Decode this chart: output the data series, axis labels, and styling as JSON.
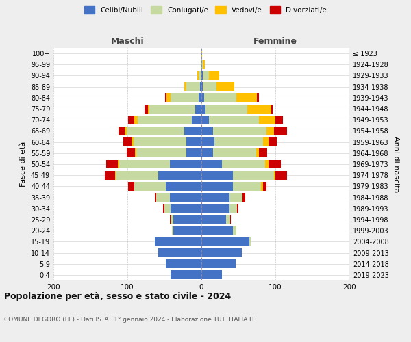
{
  "age_groups": [
    "0-4",
    "5-9",
    "10-14",
    "15-19",
    "20-24",
    "25-29",
    "30-34",
    "35-39",
    "40-44",
    "45-49",
    "50-54",
    "55-59",
    "60-64",
    "65-69",
    "70-74",
    "75-79",
    "80-84",
    "85-89",
    "90-94",
    "95-99",
    "100+"
  ],
  "birth_years": [
    "2019-2023",
    "2014-2018",
    "2009-2013",
    "2004-2008",
    "1999-2003",
    "1994-1998",
    "1989-1993",
    "1984-1988",
    "1979-1983",
    "1974-1978",
    "1969-1973",
    "1964-1968",
    "1959-1963",
    "1954-1958",
    "1949-1953",
    "1944-1948",
    "1939-1943",
    "1934-1938",
    "1929-1933",
    "1924-1928",
    "≤ 1923"
  ],
  "maschi": {
    "celibi": [
      42,
      48,
      58,
      63,
      38,
      38,
      42,
      43,
      48,
      58,
      43,
      20,
      20,
      23,
      13,
      8,
      4,
      2,
      0,
      0,
      0
    ],
    "coniugati": [
      0,
      0,
      0,
      0,
      2,
      4,
      8,
      18,
      43,
      58,
      68,
      68,
      72,
      78,
      73,
      62,
      38,
      18,
      4,
      1,
      0
    ],
    "vedovi": [
      0,
      0,
      0,
      0,
      0,
      0,
      0,
      0,
      0,
      1,
      2,
      2,
      2,
      3,
      5,
      2,
      5,
      3,
      2,
      0,
      0
    ],
    "divorziati": [
      0,
      0,
      0,
      0,
      0,
      1,
      2,
      2,
      8,
      14,
      16,
      11,
      12,
      8,
      8,
      5,
      2,
      0,
      0,
      0,
      0
    ]
  },
  "femmine": {
    "nubili": [
      28,
      46,
      55,
      65,
      43,
      33,
      38,
      38,
      43,
      43,
      28,
      16,
      18,
      16,
      10,
      6,
      4,
      2,
      2,
      0,
      0
    ],
    "coniugate": [
      0,
      0,
      0,
      2,
      4,
      6,
      10,
      18,
      38,
      55,
      58,
      58,
      65,
      72,
      68,
      56,
      43,
      18,
      8,
      2,
      0
    ],
    "vedove": [
      0,
      0,
      0,
      0,
      0,
      0,
      0,
      0,
      2,
      2,
      5,
      4,
      8,
      10,
      22,
      32,
      28,
      24,
      14,
      3,
      1
    ],
    "divorziate": [
      0,
      0,
      0,
      0,
      0,
      1,
      2,
      3,
      5,
      16,
      16,
      11,
      11,
      18,
      10,
      2,
      3,
      0,
      0,
      0,
      0
    ]
  },
  "colors": {
    "celibi": "#4472c4",
    "coniugati": "#c5d9a0",
    "vedovi": "#ffc000",
    "divorziati": "#cc0000"
  },
  "title": "Popolazione per età, sesso e stato civile - 2024",
  "subtitle": "COMUNE DI GORO (FE) - Dati ISTAT 1° gennaio 2024 - Elaborazione TUTTITALIA.IT",
  "xlabel_left": "Maschi",
  "xlabel_right": "Femmine",
  "ylabel_left": "Fasce di età",
  "ylabel_right": "Anni di nascita",
  "xlim": 200,
  "background_color": "#eeeeee",
  "plot_bg": "#ffffff",
  "legend_labels": [
    "Celibi/Nubili",
    "Coniugati/e",
    "Vedovi/e",
    "Divorziati/e"
  ]
}
